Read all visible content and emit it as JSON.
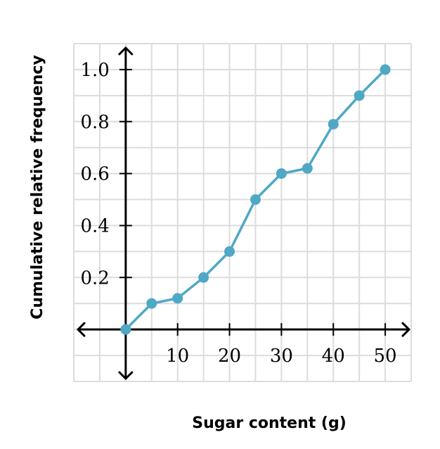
{
  "chart_data": {
    "type": "line",
    "title": "",
    "xlabel": "Sugar content (g)",
    "ylabel": "Cumulative relative frequency",
    "xlim": [
      -10,
      55
    ],
    "ylim": [
      -0.2,
      1.1
    ],
    "grid": true,
    "x_ticks": [
      10,
      20,
      30,
      40,
      50
    ],
    "y_ticks": [
      0.2,
      0.4,
      0.6,
      0.8,
      1.0
    ],
    "x_tick_labels": [
      "10",
      "20",
      "30",
      "40",
      "50"
    ],
    "y_tick_labels": [
      "0.2",
      "0.4",
      "0.6",
      "0.8",
      "1.0"
    ],
    "series": [
      {
        "x": [
          0,
          5,
          10,
          15,
          20,
          25,
          30,
          35,
          40,
          45,
          50
        ],
        "y": [
          0,
          0.1,
          0.12,
          0.2,
          0.3,
          0.5,
          0.6,
          0.62,
          0.79,
          0.9,
          1.0
        ]
      }
    ],
    "colors": {
      "series": "#4fa8c5",
      "grid": "#dcdcdc",
      "axis": "#000000"
    }
  }
}
